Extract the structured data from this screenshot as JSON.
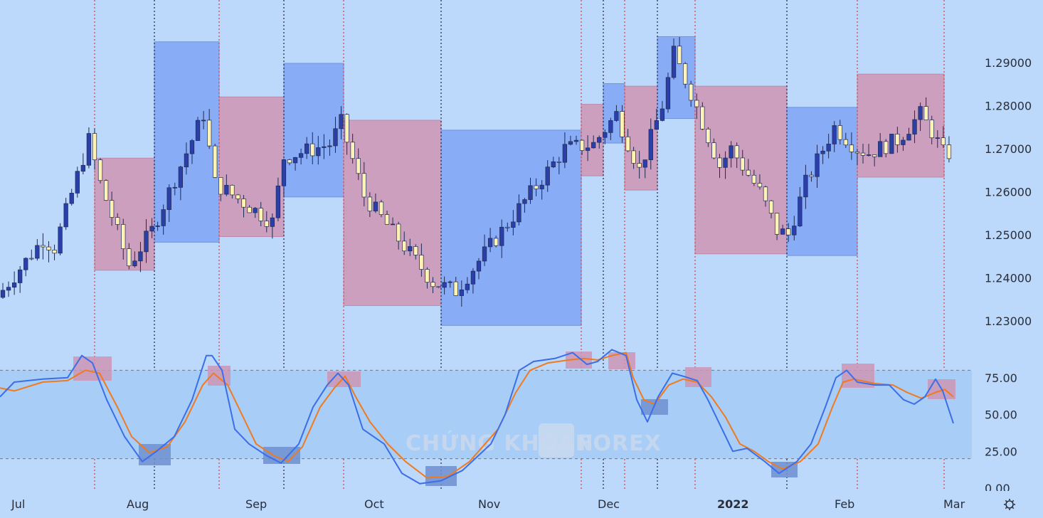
{
  "chart_data": {
    "type": "candlestick",
    "price_axis": {
      "ylim": [
        1.2236,
        1.3045
      ],
      "tick_labels": [
        "1.23000",
        "1.24000",
        "1.25000",
        "1.26000",
        "1.27000",
        "1.28000",
        "1.29000"
      ],
      "ticks": [
        1.23,
        1.24,
        1.25,
        1.26,
        1.27,
        1.28,
        1.29
      ]
    },
    "x_labels": [
      "Jul",
      "Aug",
      "Sep",
      "Oct",
      "Nov",
      "Dec",
      "2022",
      "Feb",
      "Mar"
    ],
    "oscillator": {
      "tick_labels": [
        "0.00",
        "25.00",
        "50.00",
        "75.00"
      ],
      "ticks": [
        0,
        25,
        50,
        75
      ],
      "overbought": 80,
      "oversold": 20,
      "fast_name": "",
      "slow_name": ""
    },
    "watermark": [
      "CHỨNG KHOÁN",
      "FOREX"
    ],
    "colors": {
      "background": "#bcd8fa",
      "bull_candle": "#2b3fa8",
      "bear_candle": "#fef3b4",
      "pink_box": "#cc9fbf",
      "blue_box": "#88acf5",
      "fast_line": "#3b6ee8",
      "slow_line": "#f07a1e",
      "red_divider": "#e03b3b",
      "black_divider": "#1a2140"
    }
  }
}
